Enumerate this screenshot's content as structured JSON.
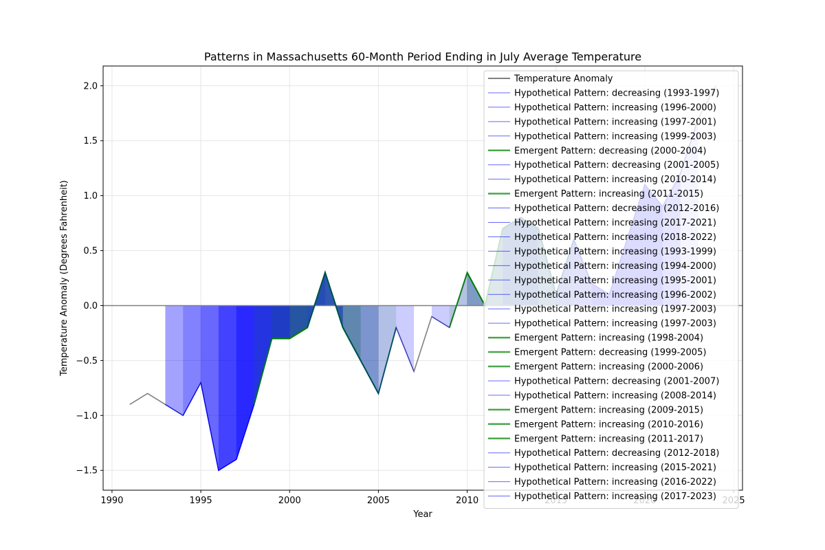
{
  "chart_data": {
    "type": "area",
    "title": "Patterns in Massachusetts 60-Month Period Ending in July Average Temperature",
    "xlabel": "Year",
    "ylabel": "Temperature Anomaly (Degrees Fahrenheit)",
    "xlim": [
      1989.5,
      2025.5
    ],
    "ylim": [
      -1.68,
      2.18
    ],
    "x_ticks": [
      1990,
      1995,
      2000,
      2005,
      2010,
      2015,
      2020,
      2025
    ],
    "x_tick_labels": [
      "1990",
      "1995",
      "2000",
      "2005",
      "2010",
      "2015",
      "2020",
      "2025"
    ],
    "y_ticks": [
      -1.5,
      -1.0,
      -0.5,
      0.0,
      0.5,
      1.0,
      1.5,
      2.0
    ],
    "y_tick_labels": [
      "−1.5",
      "−1.0",
      "−0.5",
      "0.0",
      "0.5",
      "1.0",
      "1.5",
      "2.0"
    ],
    "grid": true,
    "legend_position": "upper right",
    "colors": {
      "anomaly": "#808080",
      "hypothetical": "#0000ff",
      "emergent": "#008000",
      "zero_line": "#808080"
    },
    "anomaly": {
      "name": "Temperature Anomaly",
      "x": [
        1991,
        1992,
        1993,
        1994,
        1995,
        1996,
        1997,
        1998,
        1999,
        2000,
        2001,
        2002,
        2003,
        2004,
        2005,
        2006,
        2007,
        2008,
        2009,
        2010,
        2011,
        2012,
        2013,
        2014,
        2015,
        2016,
        2017,
        2018,
        2019,
        2020,
        2021,
        2022,
        2023,
        2024
      ],
      "y": [
        -0.9,
        -0.8,
        -0.9,
        -1.0,
        -0.7,
        -1.5,
        -1.4,
        -0.9,
        -0.3,
        -0.3,
        -0.2,
        0.3,
        -0.2,
        -0.5,
        -0.8,
        -0.2,
        -0.6,
        -0.1,
        -0.2,
        0.3,
        0.0,
        0.7,
        0.8,
        0.7,
        0.1,
        0.6,
        0.2,
        0.1,
        0.6,
        1.1,
        0.9,
        1.2,
        1.7,
        2.0
      ]
    },
    "patterns": [
      {
        "name": "Hypothetical Pattern: decreasing (1993-1997)",
        "kind": "hypothetical",
        "start": 1993,
        "end": 1997
      },
      {
        "name": "Hypothetical Pattern: increasing (1996-2000)",
        "kind": "hypothetical",
        "start": 1996,
        "end": 2000
      },
      {
        "name": "Hypothetical Pattern: increasing (1997-2001)",
        "kind": "hypothetical",
        "start": 1997,
        "end": 2001
      },
      {
        "name": "Hypothetical Pattern: increasing (1999-2003)",
        "kind": "hypothetical",
        "start": 1999,
        "end": 2003
      },
      {
        "name": "Emergent Pattern: decreasing (2000-2004)",
        "kind": "emergent",
        "start": 2000,
        "end": 2004
      },
      {
        "name": "Hypothetical Pattern: decreasing (2001-2005)",
        "kind": "hypothetical",
        "start": 2001,
        "end": 2005
      },
      {
        "name": "Hypothetical Pattern: increasing (2010-2014)",
        "kind": "hypothetical",
        "start": 2010,
        "end": 2014
      },
      {
        "name": "Emergent Pattern: increasing (2011-2015)",
        "kind": "emergent",
        "start": 2011,
        "end": 2015
      },
      {
        "name": "Hypothetical Pattern: decreasing (2012-2016)",
        "kind": "hypothetical",
        "start": 2012,
        "end": 2016
      },
      {
        "name": "Hypothetical Pattern: increasing (2017-2021)",
        "kind": "hypothetical",
        "start": 2017,
        "end": 2021
      },
      {
        "name": "Hypothetical Pattern: increasing (2018-2022)",
        "kind": "hypothetical",
        "start": 2018,
        "end": 2022
      },
      {
        "name": "Hypothetical Pattern: increasing (1993-1999)",
        "kind": "hypothetical",
        "start": 1993,
        "end": 1999
      },
      {
        "name": "Hypothetical Pattern: increasing (1994-2000)",
        "kind": "hypothetical",
        "start": 1994,
        "end": 2000
      },
      {
        "name": "Hypothetical Pattern: increasing (1995-2001)",
        "kind": "hypothetical",
        "start": 1995,
        "end": 2001
      },
      {
        "name": "Hypothetical Pattern: increasing (1996-2002)",
        "kind": "hypothetical",
        "start": 1996,
        "end": 2002
      },
      {
        "name": "Hypothetical Pattern: increasing (1997-2003)",
        "kind": "hypothetical",
        "start": 1997,
        "end": 2003
      },
      {
        "name": "Hypothetical Pattern: increasing (1997-2003)",
        "kind": "hypothetical",
        "start": 1997,
        "end": 2003
      },
      {
        "name": "Emergent Pattern: increasing (1998-2004)",
        "kind": "emergent",
        "start": 1998,
        "end": 2004
      },
      {
        "name": "Emergent Pattern: decreasing (1999-2005)",
        "kind": "emergent",
        "start": 1999,
        "end": 2005
      },
      {
        "name": "Emergent Pattern: increasing (2000-2006)",
        "kind": "emergent",
        "start": 2000,
        "end": 2006
      },
      {
        "name": "Hypothetical Pattern: decreasing (2001-2007)",
        "kind": "hypothetical",
        "start": 2001,
        "end": 2007
      },
      {
        "name": "Hypothetical Pattern: increasing (2008-2014)",
        "kind": "hypothetical",
        "start": 2008,
        "end": 2014
      },
      {
        "name": "Emergent Pattern: increasing (2009-2015)",
        "kind": "emergent",
        "start": 2009,
        "end": 2015
      },
      {
        "name": "Emergent Pattern: increasing (2010-2016)",
        "kind": "emergent",
        "start": 2010,
        "end": 2016
      },
      {
        "name": "Emergent Pattern: increasing (2011-2017)",
        "kind": "emergent",
        "start": 2011,
        "end": 2017
      },
      {
        "name": "Hypothetical Pattern: decreasing (2012-2018)",
        "kind": "hypothetical",
        "start": 2012,
        "end": 2018
      },
      {
        "name": "Hypothetical Pattern: increasing (2015-2021)",
        "kind": "hypothetical",
        "start": 2015,
        "end": 2021
      },
      {
        "name": "Hypothetical Pattern: increasing (2016-2022)",
        "kind": "hypothetical",
        "start": 2016,
        "end": 2022
      },
      {
        "name": "Hypothetical Pattern: increasing (2017-2023)",
        "kind": "hypothetical",
        "start": 2017,
        "end": 2023
      }
    ]
  }
}
